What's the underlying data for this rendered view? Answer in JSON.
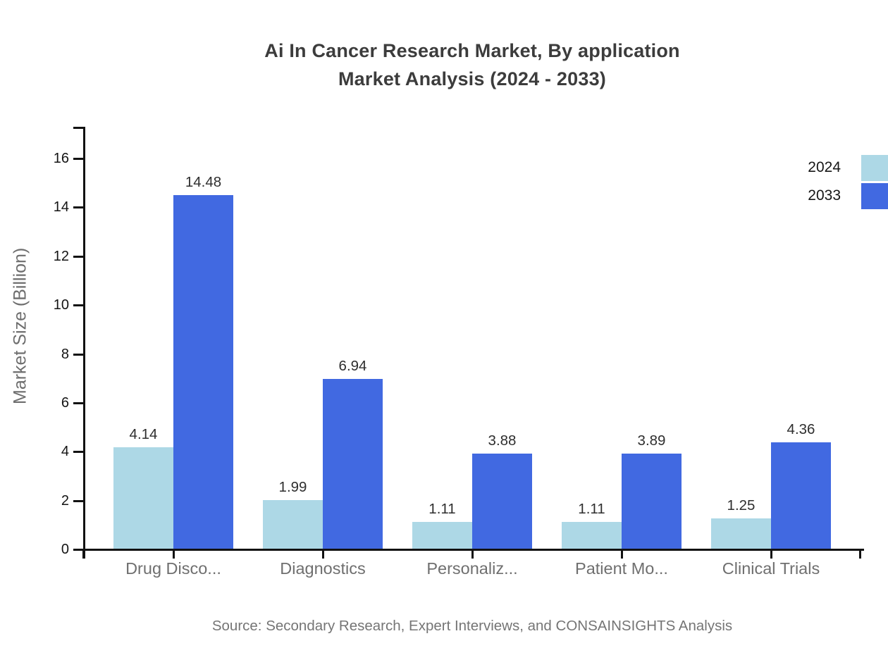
{
  "title": {
    "line1": "Ai In Cancer Research Market, By application",
    "line2": "Market Analysis (2024 - 2033)"
  },
  "chart_data": {
    "type": "bar",
    "title": "Ai In Cancer Research Market, By application Market Analysis (2024 - 2033)",
    "categories": [
      "Drug Disco...",
      "Diagnostics",
      "Personaliz...",
      "Patient Mo...",
      "Clinical Trials"
    ],
    "series": [
      {
        "name": "2024",
        "color": "#ADD8E6",
        "values": [
          4.14,
          1.99,
          1.11,
          1.11,
          1.25
        ]
      },
      {
        "name": "2033",
        "color": "#4169E1",
        "values": [
          14.48,
          6.94,
          3.88,
          3.89,
          4.36
        ]
      }
    ],
    "xlabel": "",
    "ylabel": "Market Size (Billion)",
    "ylim": [
      0,
      17.3
    ],
    "y_ticks": [
      0,
      2,
      4,
      6,
      8,
      10,
      12,
      14,
      16
    ],
    "grid": false,
    "legend_position": "top-right",
    "value_labels": true
  },
  "source": "Source: Secondary Research, Expert Interviews, and CONSAINSIGHTS Analysis",
  "colors": {
    "series_2024": "#ADD8E6",
    "series_2033": "#4169E1",
    "axis": "#121212",
    "title_text": "#3c3c3c",
    "muted_text": "#6f6f6f",
    "background": "#ffffff"
  }
}
